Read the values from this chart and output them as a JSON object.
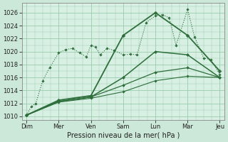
{
  "background_color": "#cce8d8",
  "plot_bg": "#d8efe4",
  "grid_color": "#99ccaa",
  "line_color": "#2d6e3a",
  "title": "Pression niveau de la mer( hPa )",
  "ylim": [
    1009.5,
    1027.5
  ],
  "yticks": [
    1010,
    1012,
    1014,
    1016,
    1018,
    1020,
    1022,
    1024,
    1026
  ],
  "xlabels": [
    "Dim",
    "Mer",
    "Ven",
    "Sam",
    "Lun",
    "Mar",
    "Jeu"
  ],
  "xtick_positions": [
    0,
    14,
    28,
    42,
    56,
    70,
    84
  ],
  "total_points": 85,
  "series": [
    {
      "x": [
        0,
        2,
        4,
        7,
        10,
        14,
        17,
        20,
        23,
        26,
        28,
        30,
        32,
        35,
        38,
        42,
        45,
        48,
        52,
        56,
        59,
        62,
        65,
        70,
        73,
        77,
        80,
        84
      ],
      "y": [
        1010.2,
        1011.5,
        1012.0,
        1015.5,
        1017.5,
        1019.8,
        1020.3,
        1020.5,
        1019.8,
        1019.2,
        1021.0,
        1020.7,
        1019.5,
        1020.5,
        1020.2,
        1019.5,
        1019.6,
        1019.5,
        1024.5,
        1025.5,
        1025.7,
        1025.2,
        1021.0,
        1026.5,
        1022.3,
        1019.0,
        1018.8,
        1016.5
      ],
      "style": "dotted",
      "lw": 0.8,
      "ms": 1.8
    },
    {
      "x": [
        0,
        14,
        28,
        42,
        56,
        70,
        84
      ],
      "y": [
        1010.2,
        1012.5,
        1013.2,
        1022.5,
        1026.0,
        1022.5,
        1017.0
      ],
      "style": "solid",
      "lw": 1.3,
      "ms": 2.5
    },
    {
      "x": [
        0,
        14,
        28,
        42,
        56,
        70,
        84
      ],
      "y": [
        1010.2,
        1012.3,
        1013.0,
        1016.0,
        1020.0,
        1019.5,
        1016.0
      ],
      "style": "solid",
      "lw": 1.1,
      "ms": 2.2
    },
    {
      "x": [
        0,
        14,
        28,
        42,
        56,
        70,
        84
      ],
      "y": [
        1010.2,
        1012.3,
        1013.0,
        1014.8,
        1016.8,
        1017.5,
        1016.0
      ],
      "style": "solid",
      "lw": 0.9,
      "ms": 2.0
    },
    {
      "x": [
        0,
        14,
        28,
        42,
        56,
        70,
        84
      ],
      "y": [
        1010.2,
        1012.2,
        1012.8,
        1013.8,
        1015.5,
        1016.2,
        1016.0
      ],
      "style": "solid",
      "lw": 0.8,
      "ms": 1.8
    }
  ],
  "title_fontsize": 7.0,
  "tick_fontsize": 6.0
}
